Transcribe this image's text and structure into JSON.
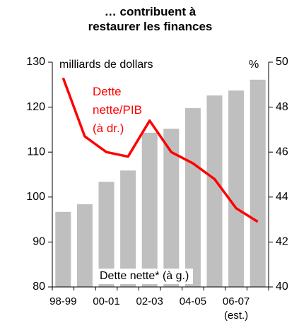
{
  "chart_data": {
    "type": "bar_line",
    "title": "… contribuent à restaurer les finances",
    "ylabel": "milliards de dollars",
    "y2label": "%",
    "categories": [
      "98-99",
      null,
      "00-01",
      null,
      "02-03",
      null,
      "04-05",
      null,
      "06-07 (est.)",
      null
    ],
    "series": [
      {
        "name": "Dette nette* (à g.)",
        "color": "#bfbfbf",
        "type": "bar",
        "values": [
          96.7,
          98.4,
          103.4,
          105.9,
          114.3,
          115.2,
          119.8,
          122.6,
          123.7,
          126.1
        ]
      },
      {
        "name": "Dette nette/PIB (à dr.)",
        "color": "#ff0000",
        "type": "line",
        "axis": "y2",
        "values": [
          49.3,
          46.7,
          46.0,
          45.8,
          47.4,
          46.0,
          45.5,
          44.8,
          43.5,
          42.9
        ]
      }
    ],
    "ylim": [
      80,
      130
    ],
    "yticks": [
      80,
      90,
      100,
      110,
      120,
      130
    ],
    "y2lim": [
      40,
      50
    ],
    "y2ticks": [
      40,
      42,
      44,
      46,
      48,
      50
    ]
  }
}
